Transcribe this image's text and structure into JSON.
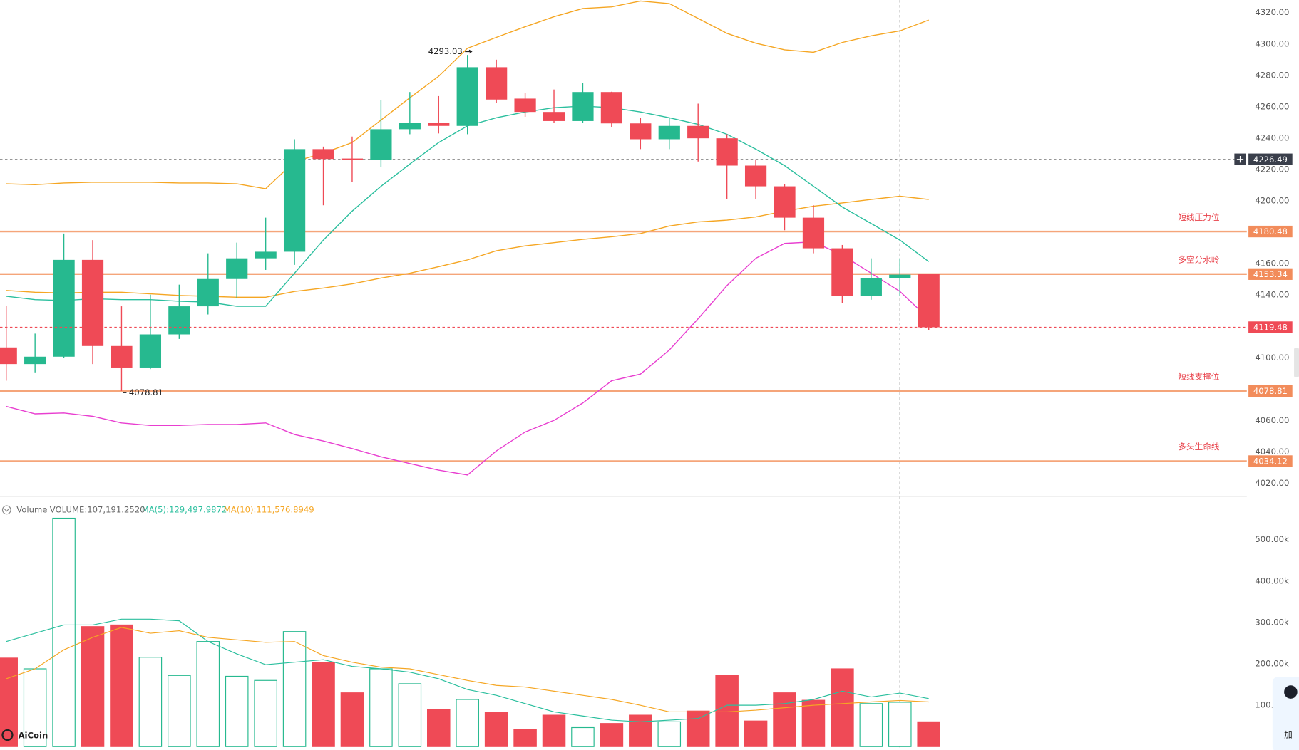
{
  "chart_data": {
    "type": "candlestick",
    "ylim": [
      4012,
      4328
    ],
    "yticks": [
      {
        "value": 4020,
        "label": "4020.00"
      },
      {
        "value": 4040,
        "label": "4040.00"
      },
      {
        "value": 4060,
        "label": "4060.00"
      },
      {
        "value": 4080,
        "label": "4080.00"
      },
      {
        "value": 4100,
        "label": "4100.00"
      },
      {
        "value": 4120,
        "label": "4120.00"
      },
      {
        "value": 4140,
        "label": "4140.00"
      },
      {
        "value": 4160,
        "label": "4160.00"
      },
      {
        "value": 4180,
        "label": "4180.00"
      },
      {
        "value": 4200,
        "label": "4200.00"
      },
      {
        "value": 4220,
        "label": "4220.00"
      },
      {
        "value": 4240,
        "label": "4240.00"
      },
      {
        "value": 4260,
        "label": "4260.00"
      },
      {
        "value": 4280,
        "label": "4280.00"
      },
      {
        "value": 4300,
        "label": "4300.00"
      },
      {
        "value": 4320,
        "label": "4320.00"
      }
    ],
    "grid": false,
    "up_color": "#26b98f",
    "down_color": "#ef4a56",
    "open": [
      4106.6,
      4096,
      4100.7,
      4162.4,
      4107.5,
      4093.8,
      4114.9,
      4132.8,
      4150.2,
      4163.4,
      4167.6,
      4233,
      4227,
      4226.2,
      4245.7,
      4249.9,
      4247.8,
      4285.2,
      4265.2,
      4256.7,
      4250.9,
      4269.4,
      4249.4,
      4239.3,
      4247.8,
      4239.9,
      4222.5,
      4209.3,
      4189.3,
      4169.8,
      4139.2,
      4150.8,
      4153.3
    ],
    "high": [
      4133,
      4115.4,
      4179.2,
      4175,
      4132.8,
      4140.2,
      4146.6,
      4166.6,
      4173.4,
      4189.3,
      4239.3,
      4234.6,
      4241,
      4264.1,
      4269.4,
      4266.8,
      4293.03,
      4290,
      4268.9,
      4271,
      4275.2,
      4269.6,
      4253,
      4253,
      4262,
      4242.5,
      4226.2,
      4210.9,
      4197.2,
      4171.9,
      4163.4,
      4163.4,
      4153.4
    ],
    "low": [
      4085.4,
      4090.7,
      4100,
      4096,
      4078.81,
      4092.8,
      4112,
      4127.6,
      4138,
      4156,
      4159.2,
      4197.2,
      4212,
      4221.4,
      4242.5,
      4243,
      4242.5,
      4262.5,
      4253.6,
      4249.9,
      4249.9,
      4247.2,
      4233,
      4233,
      4225.1,
      4201.4,
      4201.4,
      4181.3,
      4166.6,
      4135,
      4137,
      4139.2,
      4117.6
    ],
    "close": [
      4096,
      4100.7,
      4162.4,
      4107.5,
      4093.8,
      4114.9,
      4132.8,
      4150.2,
      4163.4,
      4167.6,
      4233,
      4226.7,
      4226.5,
      4245.7,
      4249.9,
      4247.8,
      4285.2,
      4264.6,
      4256.7,
      4250.9,
      4269.4,
      4249.4,
      4239.3,
      4247.8,
      4239.9,
      4222.5,
      4209.3,
      4189.3,
      4169.8,
      4139.2,
      4150.8,
      4153,
      4119.48
    ],
    "high_mark_index": 16,
    "low_mark_index": 4,
    "lines": [
      {
        "color": "#f5a623",
        "values": [
          4210.9,
          4210.3,
          4211.4,
          4211.9,
          4211.9,
          4211.9,
          4211.4,
          4211.4,
          4210.9,
          4207.7,
          4225.1,
          4230.4,
          4237.2,
          4251.5,
          4265.7,
          4279.4,
          4297.3,
          4304.2,
          4311,
          4317.4,
          4322.6,
          4323.7,
          4327.4,
          4325.8,
          4316.3,
          4306.8,
          4300.5,
          4296.3,
          4294.7,
          4301,
          4305.2,
          4308.4,
          4315.3
        ]
      },
      {
        "color": "#f5a623",
        "values": [
          4142.9,
          4141.8,
          4141.3,
          4141.8,
          4141.8,
          4140.8,
          4139.7,
          4139.2,
          4138.6,
          4138.6,
          4142.3,
          4144.4,
          4147.1,
          4150.8,
          4153.9,
          4158.1,
          4162.4,
          4168.2,
          4171.3,
          4173.4,
          4175.5,
          4177.1,
          4179.2,
          4184,
          4186.6,
          4187.7,
          4189.8,
          4193.5,
          4196.6,
          4198.7,
          4200.9,
          4202.96,
          4200.9
        ]
      },
      {
        "color": "#2bbf9e",
        "values": [
          4139.2,
          4137.1,
          4136.5,
          4137.6,
          4137.1,
          4137.1,
          4136,
          4135.5,
          4132.8,
          4132.8,
          4153.9,
          4175,
          4193.5,
          4209.3,
          4223.5,
          4237.2,
          4247.8,
          4253,
          4256.7,
          4259.4,
          4260.4,
          4259.4,
          4256.7,
          4253,
          4248.8,
          4242.5,
          4233,
          4222.5,
          4209.3,
          4196.1,
          4185.6,
          4175,
          4161.3
        ]
      },
      {
        "color": "#e83ed0",
        "values": [
          4069.05,
          4064.3,
          4064.8,
          4062.7,
          4058.5,
          4056.9,
          4056.9,
          4057.5,
          4057.5,
          4058.5,
          4051.1,
          4046.9,
          4042.1,
          4036.9,
          4032.6,
          4028.4,
          4025.3,
          4040.6,
          4052.7,
          4060.1,
          4071.2,
          4085.4,
          4089.6,
          4104.9,
          4124.9,
          4146,
          4163.4,
          4172.9,
          4173.9,
          4165.5,
          4153.9,
          4142.3,
          4124.9
        ]
      }
    ],
    "level_color": "#f5a57a",
    "levels": [
      {
        "value": 4180.48,
        "text": "短线压力位"
      },
      {
        "value": 4153.34,
        "text": "多空分水岭"
      },
      {
        "value": 4078.81,
        "text": "短线支撑位"
      },
      {
        "value": 4034.12,
        "text": "多头生命线"
      }
    ],
    "crosshair": {
      "index": 31,
      "price": 4226.49
    },
    "volume": {
      "title": "Volume",
      "readout": "VOLUME:107,191.2520",
      "ylim": [
        0,
        560000
      ],
      "yticks": [
        {
          "value": 100000,
          "label": "100.00k"
        },
        {
          "value": 200000,
          "label": "200.00k"
        },
        {
          "value": 300000,
          "label": "300.00k"
        },
        {
          "value": 400000,
          "label": "400.00k"
        },
        {
          "value": 500000,
          "label": "500.00k"
        }
      ],
      "values": [
        214000,
        188000,
        552000,
        290000,
        294000,
        216000,
        172000,
        254000,
        170000,
        160000,
        278000,
        204000,
        130000,
        188000,
        152000,
        90000,
        114000,
        82000,
        42000,
        76000,
        46000,
        56000,
        76000,
        60000,
        86000,
        172000,
        62000,
        130000,
        112000,
        188000,
        104000,
        107191.252,
        60000
      ],
      "lines": [
        {
          "name": "MA(5):129,497.9872",
          "color": "#2bbf9e",
          "values": [
            254000,
            274000,
            294000,
            294000,
            308000,
            308000,
            304000,
            254000,
            224000,
            198000,
            204000,
            210000,
            194000,
            188000,
            180000,
            164000,
            138000,
            124000,
            104000,
            84000,
            74000,
            64000,
            60000,
            64000,
            68000,
            100000,
            100000,
            104000,
            114000,
            134000,
            120000,
            129497.9872,
            116000
          ]
        },
        {
          "name": "MA(10):111,576.8949",
          "color": "#f5a623",
          "values": [
            164000,
            188000,
            234000,
            264000,
            288000,
            274000,
            280000,
            264000,
            258000,
            252000,
            254000,
            220000,
            204000,
            192000,
            188000,
            174000,
            160000,
            148000,
            144000,
            134000,
            124000,
            114000,
            100000,
            84000,
            84000,
            84000,
            88000,
            94000,
            100000,
            104000,
            108000,
            111576.8949,
            108000
          ]
        }
      ]
    },
    "logo": "AiCoin",
    "side_widget_text": "加"
  }
}
